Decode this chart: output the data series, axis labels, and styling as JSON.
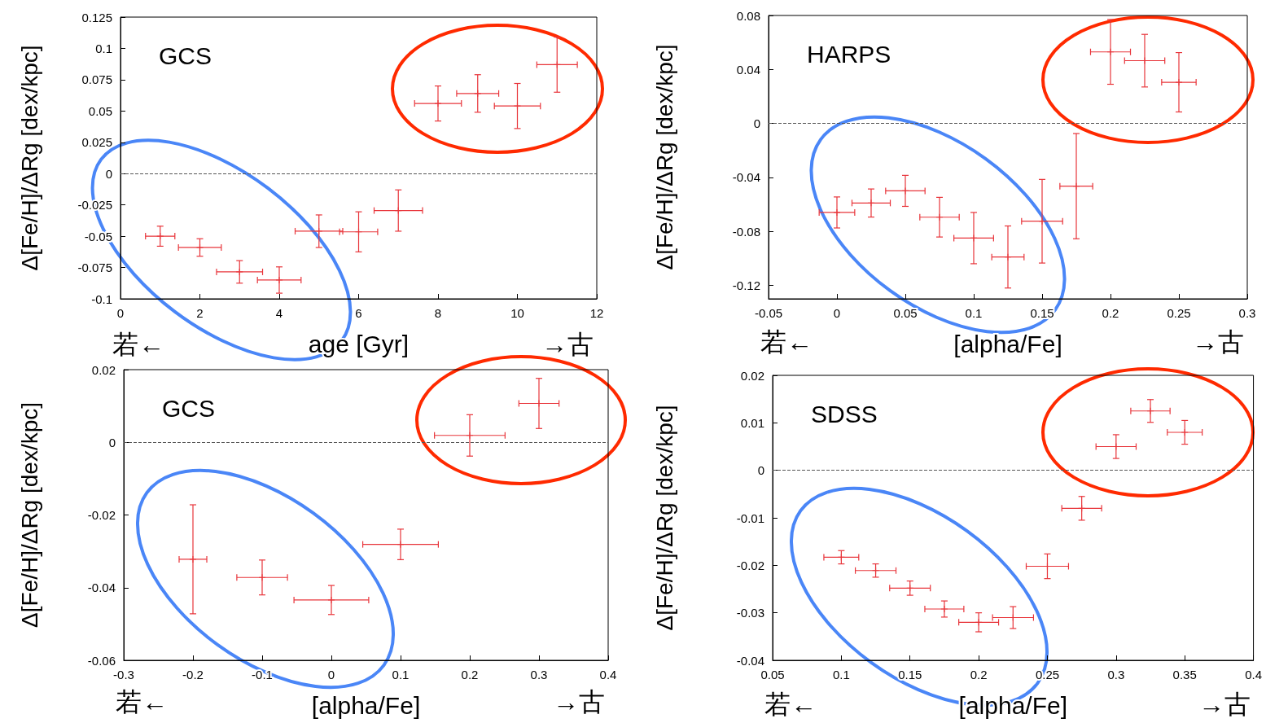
{
  "chart_data": [
    {
      "type": "scatter",
      "marker": "cross",
      "xlabel": "age [Gyr]",
      "ylabel": "Δ[Fe/H]/ΔRg [dex/kpc]",
      "annotations": [
        "GCS",
        "若←",
        "→古"
      ],
      "color": "#e8343a",
      "x": [
        1,
        2,
        3,
        4,
        5,
        6,
        7,
        8,
        9,
        10,
        11
      ],
      "values": [
        -0.05,
        -0.059,
        -0.0785,
        -0.085,
        -0.046,
        -0.0465,
        -0.0295,
        0.056,
        0.064,
        0.054,
        0.087
      ],
      "errors": [
        0.008,
        0.007,
        0.009,
        0.0105,
        0.013,
        0.016,
        0.0165,
        0.014,
        0.015,
        0.018,
        0.022
      ],
      "xerrors": [
        0.37,
        0.54,
        0.58,
        0.55,
        0.6,
        0.48,
        0.61,
        0.59,
        0.53,
        0.58,
        0.51
      ],
      "xlim": [
        0,
        12
      ],
      "xticks": [
        0,
        2,
        4,
        6,
        8,
        10,
        12
      ],
      "ylim": [
        -0.1,
        0.125
      ],
      "yticks": [
        -0.1,
        -0.075,
        -0.05,
        -0.025,
        0,
        0.025,
        0.05,
        0.075,
        0.1,
        0.125
      ],
      "ref_lines": [
        {
          "axis": "y",
          "value": 0,
          "color": "#555555",
          "line_style": "dashed"
        }
      ]
    },
    {
      "type": "scatter",
      "marker": "cross",
      "xlabel": "[alpha/Fe]",
      "ylabel": "Δ[Fe/H]/ΔRg [dex/kpc]",
      "annotations": [
        "HARPS",
        "若←",
        "→古"
      ],
      "color": "#e8343a",
      "x": [
        0,
        0.025,
        0.05,
        0.075,
        0.1,
        0.125,
        0.15,
        0.175,
        0.2,
        0.225,
        0.25
      ],
      "values": [
        -0.066,
        -0.059,
        -0.05,
        -0.0695,
        -0.085,
        -0.099,
        -0.0725,
        -0.0465,
        0.053,
        0.0465,
        0.0305
      ],
      "errors": [
        0.0115,
        0.0104,
        0.0115,
        0.0147,
        0.019,
        0.023,
        0.031,
        0.039,
        0.024,
        0.0195,
        0.022
      ],
      "xerrors": [
        0.013,
        0.014,
        0.0144,
        0.0144,
        0.0145,
        0.0118,
        0.015,
        0.012,
        0.0146,
        0.0147,
        0.0126
      ],
      "xlim": [
        -0.05,
        0.3
      ],
      "xticks": [
        -0.05,
        0,
        0.05,
        0.1,
        0.15,
        0.2,
        0.25,
        0.3
      ],
      "ylim": [
        -0.13,
        0.08
      ],
      "yticks": [
        -0.12,
        -0.08,
        -0.04,
        0,
        0.04,
        0.08
      ],
      "ref_lines": [
        {
          "axis": "y",
          "value": 0,
          "color": "#555555",
          "line_style": "dashed"
        }
      ]
    },
    {
      "type": "scatter",
      "marker": "cross",
      "xlabel": "[alpha/Fe]",
      "ylabel": "Δ[Fe/H]/ΔRg [dex/kpc]",
      "annotations": [
        "GCS",
        "若←",
        "→古"
      ],
      "color": "#e8343a",
      "x": [
        -0.2,
        -0.1,
        0,
        0.1,
        0.2,
        0.3
      ],
      "values": [
        -0.0322,
        -0.0372,
        -0.0434,
        -0.0281,
        0.0019,
        0.0107
      ],
      "errors": [
        0.015,
        0.0048,
        0.004,
        0.0042,
        0.0057,
        0.0069
      ],
      "xerrors": [
        0.02,
        0.0366,
        0.054,
        0.0546,
        0.051,
        0.029
      ],
      "xlim": [
        -0.3,
        0.4
      ],
      "xticks": [
        -0.3,
        -0.2,
        -0.1,
        0,
        0.1,
        0.2,
        0.3,
        0.4
      ],
      "ylim": [
        -0.06,
        0.02
      ],
      "yticks": [
        -0.06,
        -0.04,
        -0.02,
        0,
        0.02
      ],
      "ref_lines": [
        {
          "axis": "y",
          "value": 0,
          "color": "#555555",
          "line_style": "dashed"
        }
      ]
    },
    {
      "type": "scatter",
      "marker": "cross",
      "xlabel": "[alpha/Fe]",
      "ylabel": "Δ[Fe/H]/ΔRg [dex/kpc]",
      "annotations": [
        "SDSS",
        "若←",
        "→古"
      ],
      "color": "#e8343a",
      "x": [
        0.1,
        0.125,
        0.15,
        0.175,
        0.2,
        0.225,
        0.25,
        0.275,
        0.3,
        0.325,
        0.35
      ],
      "values": [
        -0.0183,
        -0.0211,
        -0.0248,
        -0.0292,
        -0.032,
        -0.031,
        -0.0202,
        -0.008,
        0.005,
        0.0125,
        0.008
      ],
      "errors": [
        0.0014,
        0.0014,
        0.0015,
        0.0017,
        0.002,
        0.0023,
        0.0026,
        0.0025,
        0.0025,
        0.0024,
        0.0025
      ],
      "xerrors": [
        0.0127,
        0.0148,
        0.0148,
        0.0142,
        0.0145,
        0.0149,
        0.0154,
        0.0145,
        0.0146,
        0.0143,
        0.0127
      ],
      "xlim": [
        0.05,
        0.4
      ],
      "xticks": [
        0.05,
        0.1,
        0.15,
        0.2,
        0.25,
        0.3,
        0.35,
        0.4
      ],
      "ylim": [
        -0.04,
        0.02
      ],
      "yticks": [
        -0.04,
        -0.03,
        -0.02,
        -0.01,
        0,
        0.01,
        0.02
      ],
      "ref_lines": [
        {
          "axis": "y",
          "value": 0,
          "color": "#555555",
          "line_style": "dashed"
        }
      ]
    }
  ]
}
